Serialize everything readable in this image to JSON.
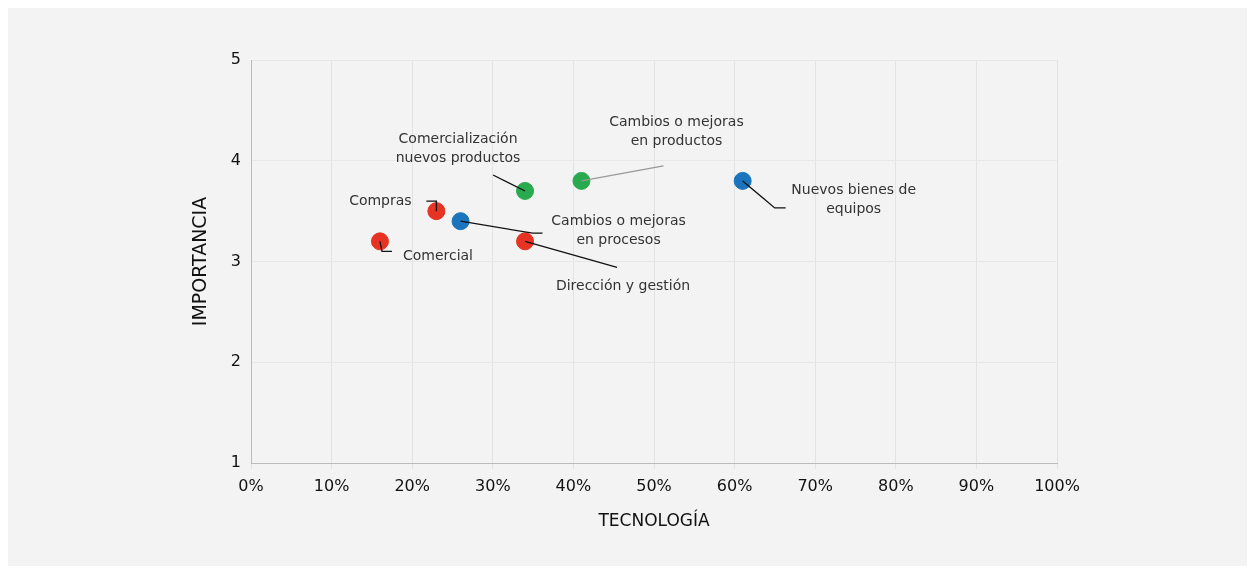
{
  "chart_data": {
    "type": "scatter",
    "xlabel": "TECNOLOGÍA",
    "ylabel": "IMPORTANCIA",
    "xlim": [
      0,
      100
    ],
    "xticks": [
      {
        "value": 0,
        "label": "0%"
      },
      {
        "value": 10,
        "label": "10%"
      },
      {
        "value": 20,
        "label": "20%"
      },
      {
        "value": 30,
        "label": "30%"
      },
      {
        "value": 40,
        "label": "40%"
      },
      {
        "value": 50,
        "label": "50%"
      },
      {
        "value": 60,
        "label": "60%"
      },
      {
        "value": 70,
        "label": "70%"
      },
      {
        "value": 80,
        "label": "80%"
      },
      {
        "value": 90,
        "label": "90%"
      },
      {
        "value": 100,
        "label": "100%"
      }
    ],
    "ylim": [
      1,
      5
    ],
    "yticks": [
      1,
      2,
      3,
      4,
      5
    ],
    "grid": true,
    "legend": false,
    "marker": "circle",
    "series": [
      {
        "color": "#e63323",
        "x": [
          16,
          23,
          34
        ],
        "values": [
          3.2,
          3.5,
          3.2
        ]
      },
      {
        "color": "#2aaa4f",
        "x": [
          34,
          41
        ],
        "values": [
          3.7,
          3.8
        ]
      },
      {
        "color": "#1a75bc",
        "x": [
          26,
          61
        ],
        "values": [
          3.4,
          3.8
        ]
      }
    ],
    "annotations": [
      {
        "text": "Comercial",
        "x": 16,
        "y": 3.2
      },
      {
        "text": "Compras",
        "x": 23,
        "y": 3.5
      },
      {
        "text": "Cambios o mejoras en procesos",
        "x": 26,
        "y": 3.4
      },
      {
        "text": "Comercialización nuevos productos",
        "x": 34,
        "y": 3.7
      },
      {
        "text": "Dirección y gestión",
        "x": 34,
        "y": 3.2
      },
      {
        "text": "Cambios o mejoras en productos",
        "x": 41,
        "y": 3.8
      },
      {
        "text": "Nuevos bienes de equipos",
        "x": 61,
        "y": 3.8
      }
    ]
  }
}
